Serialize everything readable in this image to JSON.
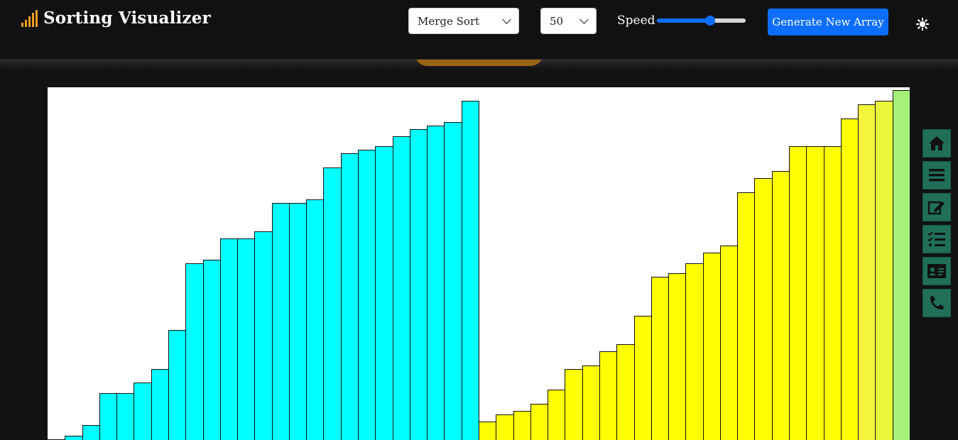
{
  "brand": {
    "title": "Sorting Visualizer",
    "logo_icon": "signal-bars-icon"
  },
  "controls": {
    "algorithm": {
      "selected": "Merge Sort",
      "options": [
        "Merge Sort"
      ]
    },
    "array_size": {
      "selected": "50",
      "options": [
        "50"
      ]
    },
    "speed": {
      "label": "Speed",
      "value": 0.6
    },
    "generate_label": "Generate New Array",
    "theme_icon": "sun-icon"
  },
  "colors": {
    "accent": "#0d6efd",
    "left_half": "#00ffff",
    "right_half": "#ffff00",
    "sorted": "#a6f07a",
    "side_nav": "#1f6f5a",
    "logo": "#f0a020"
  },
  "visualizer": {
    "max_value": 500,
    "bars": [
      {
        "value": 1,
        "color": "#00ffff"
      },
      {
        "value": 6,
        "color": "#00ffff"
      },
      {
        "value": 21,
        "color": "#00ffff"
      },
      {
        "value": 66,
        "color": "#00ffff"
      },
      {
        "value": 66,
        "color": "#00ffff"
      },
      {
        "value": 81,
        "color": "#00ffff"
      },
      {
        "value": 101,
        "color": "#00ffff"
      },
      {
        "value": 156,
        "color": "#00ffff"
      },
      {
        "value": 251,
        "color": "#00ffff"
      },
      {
        "value": 256,
        "color": "#00ffff"
      },
      {
        "value": 286,
        "color": "#00ffff"
      },
      {
        "value": 286,
        "color": "#00ffff"
      },
      {
        "value": 296,
        "color": "#00ffff"
      },
      {
        "value": 336,
        "color": "#00ffff"
      },
      {
        "value": 336,
        "color": "#00ffff"
      },
      {
        "value": 341,
        "color": "#00ffff"
      },
      {
        "value": 386,
        "color": "#00ffff"
      },
      {
        "value": 406,
        "color": "#00ffff"
      },
      {
        "value": 411,
        "color": "#00ffff"
      },
      {
        "value": 416,
        "color": "#00ffff"
      },
      {
        "value": 431,
        "color": "#00ffff"
      },
      {
        "value": 441,
        "color": "#00ffff"
      },
      {
        "value": 446,
        "color": "#00ffff"
      },
      {
        "value": 451,
        "color": "#00ffff"
      },
      {
        "value": 481,
        "color": "#00ffff"
      },
      {
        "value": 26,
        "color": "#ffff00"
      },
      {
        "value": 36,
        "color": "#ffff00"
      },
      {
        "value": 41,
        "color": "#ffff00"
      },
      {
        "value": 51,
        "color": "#ffff00"
      },
      {
        "value": 71,
        "color": "#ffff00"
      },
      {
        "value": 101,
        "color": "#ffff00"
      },
      {
        "value": 106,
        "color": "#ffff00"
      },
      {
        "value": 126,
        "color": "#ffff00"
      },
      {
        "value": 136,
        "color": "#ffff00"
      },
      {
        "value": 176,
        "color": "#ffff00"
      },
      {
        "value": 231,
        "color": "#ffff00"
      },
      {
        "value": 236,
        "color": "#ffff00"
      },
      {
        "value": 251,
        "color": "#ffff00"
      },
      {
        "value": 266,
        "color": "#ffff00"
      },
      {
        "value": 276,
        "color": "#ffff00"
      },
      {
        "value": 351,
        "color": "#ffff00"
      },
      {
        "value": 371,
        "color": "#ffff00"
      },
      {
        "value": 381,
        "color": "#ffff00"
      },
      {
        "value": 416,
        "color": "#ffff00"
      },
      {
        "value": 416,
        "color": "#ffff00"
      },
      {
        "value": 416,
        "color": "#ffff00"
      },
      {
        "value": 456,
        "color": "#ffff00"
      },
      {
        "value": 476,
        "color": "#f3f53a"
      },
      {
        "value": 481,
        "color": "#e9f73a"
      },
      {
        "value": 496,
        "color": "#a6f07a"
      }
    ]
  },
  "side_nav": [
    {
      "name": "home-icon"
    },
    {
      "name": "menu-icon"
    },
    {
      "name": "edit-icon"
    },
    {
      "name": "checklist-icon"
    },
    {
      "name": "contact-card-icon"
    },
    {
      "name": "phone-icon"
    }
  ]
}
